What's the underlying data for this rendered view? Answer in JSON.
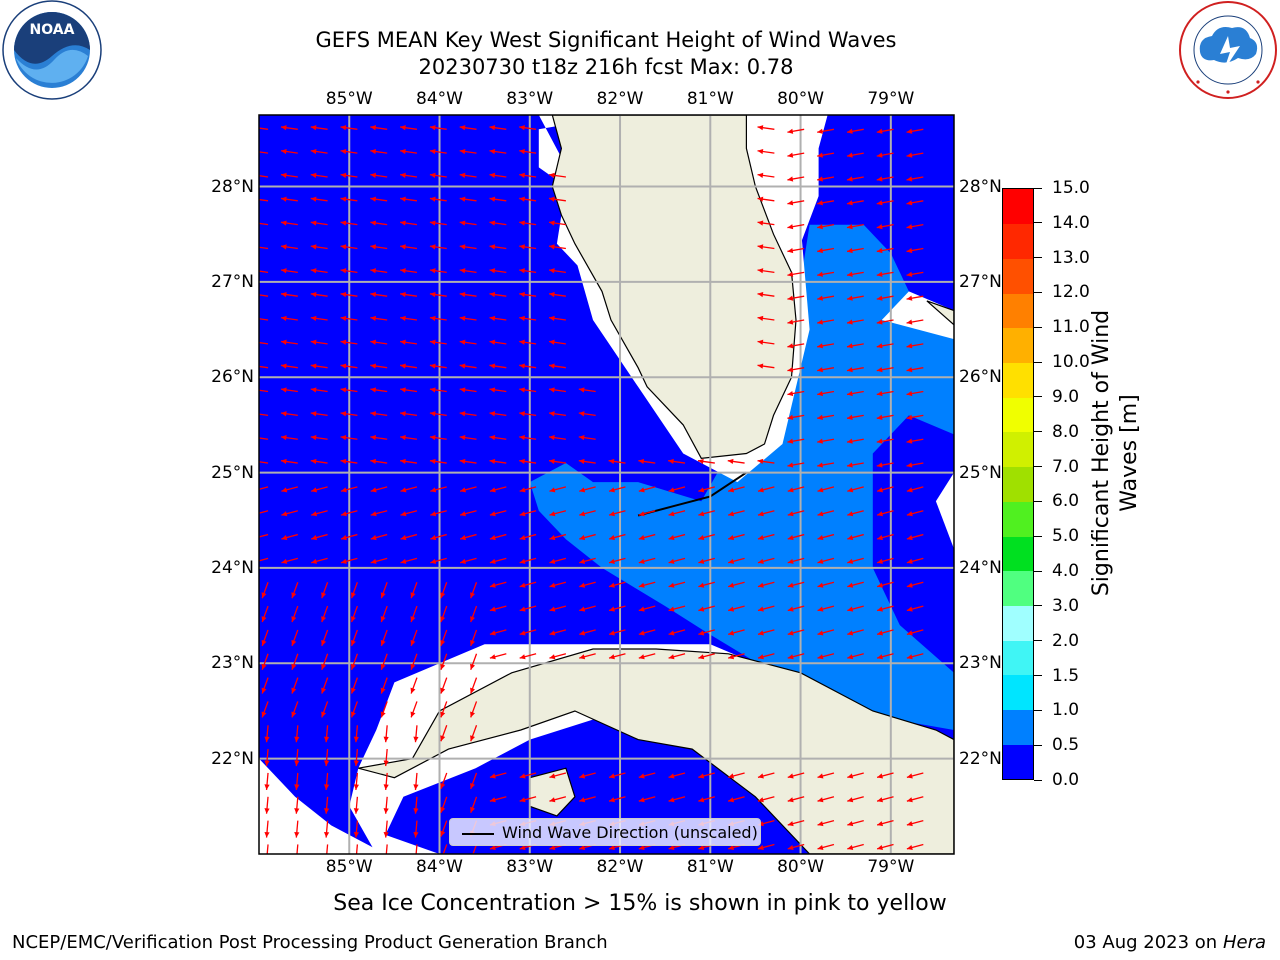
{
  "header": {
    "title_line1": "GEFS MEAN Key West Significant Height of Wind Waves",
    "title_line2": "20230730 t18z 216h fcst   Max: 0.78"
  },
  "logos": {
    "left": {
      "name": "NOAA",
      "text": "NOAA",
      "ring_text": "NATIONAL OCEANIC AND ATMOSPHERIC ADMINISTRATION · U.S. DEPARTMENT OF COMMERCE"
    },
    "right": {
      "name": "National Weather Service",
      "ring_text": "NATIONAL WEATHER SERVICE"
    }
  },
  "map": {
    "lon_labels": [
      "85°W",
      "84°W",
      "83°W",
      "82°W",
      "81°W",
      "80°W",
      "79°W"
    ],
    "lat_labels": [
      "28°N",
      "27°N",
      "26°N",
      "25°N",
      "24°N",
      "23°N",
      "22°N"
    ],
    "lon_range": [
      -86.0,
      -78.3
    ],
    "lat_range": [
      21.0,
      28.75
    ],
    "legend_label": "Wind Wave Direction (unscaled)",
    "ocean_color": "#0000ff",
    "band_0_5_1_0_color": "#0080ff",
    "land_color": "#eeeedd",
    "arrow_color": "#ff0000",
    "grid_color": "#b0b0b0"
  },
  "colorbar": {
    "title": "Significant Height of Wind Waves [m]",
    "tick_labels": [
      "0.0",
      "0.5",
      "1.0",
      "1.5",
      "2.0",
      "3.0",
      "4.0",
      "5.0",
      "6.0",
      "7.0",
      "8.0",
      "9.0",
      "10.0",
      "11.0",
      "12.0",
      "13.0",
      "14.0",
      "15.0"
    ],
    "colors": [
      "#0000ff",
      "#0080ff",
      "#00e5ff",
      "#40f5f5",
      "#a0ffff",
      "#50ff80",
      "#00e020",
      "#50f020",
      "#a0e000",
      "#d0f000",
      "#f0ff00",
      "#ffe000",
      "#ffb000",
      "#ff8000",
      "#ff5000",
      "#ff2800",
      "#ff0000"
    ]
  },
  "notes": {
    "sea_ice": "Sea Ice Concentration > 15% is shown in pink to yellow"
  },
  "footer": {
    "left": "NCEP/EMC/Verification Post Processing Product Generation Branch",
    "date": "03 Aug 2023 on",
    "machine": "Hera"
  }
}
